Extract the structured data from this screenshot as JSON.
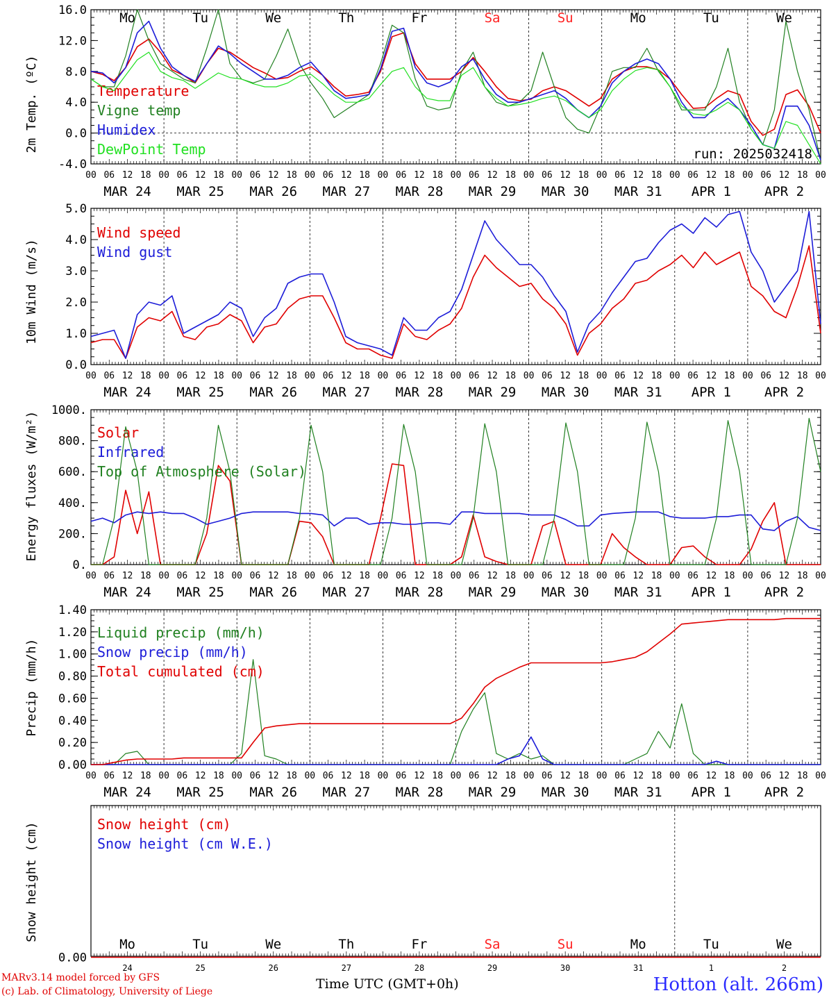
{
  "days": {
    "abbr": [
      "Mo",
      "Tu",
      "We",
      "Th",
      "Fr",
      "Sa",
      "Su",
      "Mo",
      "Tu",
      "We"
    ],
    "weekend_color": "#ff2020",
    "weekend_index": [
      5,
      6
    ],
    "dates": [
      "MAR 24",
      "MAR 25",
      "MAR 26",
      "MAR 27",
      "MAR 28",
      "MAR 29",
      "MAR 30",
      "MAR 31",
      "APR  1",
      "APR  2"
    ],
    "day_numbers": [
      "24",
      "25",
      "26",
      "27",
      "28",
      "29",
      "30",
      "31",
      "1",
      "2"
    ],
    "hour_labels": [
      "00",
      "06",
      "12",
      "18"
    ]
  },
  "colors": {
    "red": "#e00000",
    "green": "#208020",
    "blue": "#1c1cd8",
    "lightgreen": "#20e020",
    "black": "#000000"
  },
  "footer": {
    "model": "MARv3.14 model forced by GFS",
    "lab": "(c) Lab. of Climatology, University of Liege",
    "station": "Hotton (alt. 266m)",
    "time_axis": "Time UTC (GMT+0h)"
  },
  "chart_data": [
    {
      "type": "line",
      "id": "temperature",
      "ylabel": "2m Temp. (ºC)",
      "ylim": [
        -4,
        16
      ],
      "yticks": [
        "-4.0",
        "0.0",
        "4.0",
        "8.0",
        "12.0",
        "16.0"
      ],
      "annotation": "run: 2025032418",
      "x_unit": "hours since MAR 24 00 UTC, 3-hourly",
      "series": [
        {
          "name": "Temperature",
          "color": "red",
          "values": [
            8,
            7.6,
            6.8,
            8.5,
            11.2,
            12.2,
            10.5,
            8.2,
            7.5,
            6.5,
            9,
            11,
            10.5,
            9.5,
            8.5,
            7.8,
            7,
            7.2,
            8,
            8.6,
            7.5,
            6,
            4.8,
            5,
            5.3,
            8,
            12.5,
            13,
            9,
            7,
            7,
            7,
            8,
            9.8,
            8,
            6,
            4.5,
            4.2,
            4.4,
            5.5,
            6,
            5.5,
            4.5,
            3.5,
            4.5,
            7,
            8,
            8.6,
            8.6,
            8.2,
            7,
            5,
            3.2,
            3.3,
            4.5,
            5.5,
            5,
            1.5,
            -0.3,
            0.5,
            5,
            5.6,
            3.5,
            0
          ]
        },
        {
          "name": "Vigne temp",
          "color": "green",
          "values": [
            7,
            6,
            6,
            10,
            16,
            12,
            9,
            8,
            7,
            6.5,
            11,
            16,
            9,
            7,
            6.5,
            7,
            10,
            13.5,
            9,
            6.5,
            4.5,
            2,
            3,
            4,
            5,
            9,
            14,
            13,
            7,
            3.5,
            3,
            3.3,
            8,
            10.5,
            6,
            4,
            3.5,
            4,
            5.5,
            10.5,
            6,
            2,
            0.5,
            0,
            3.5,
            8,
            8.5,
            8.5,
            11,
            8,
            6,
            3,
            3,
            3,
            6,
            11,
            4,
            0.5,
            -1.5,
            3,
            14.5,
            8,
            3,
            -3.5
          ]
        },
        {
          "name": "Humidex",
          "color": "blue",
          "values": [
            8,
            7.8,
            6.5,
            8.5,
            13,
            14.5,
            11,
            8.6,
            7.5,
            6.7,
            9,
            11.3,
            10.3,
            9,
            8,
            7,
            7,
            7.5,
            8.5,
            9.2,
            7.5,
            5.5,
            4.5,
            4.7,
            5,
            8.3,
            13.2,
            13.6,
            8.5,
            6.5,
            6,
            6.6,
            8.6,
            9.6,
            7,
            5,
            4,
            4,
            4.5,
            5,
            5.5,
            4.5,
            3,
            2,
            3.5,
            6.5,
            8,
            9,
            9.6,
            9,
            7,
            4,
            2,
            2,
            3.5,
            4.5,
            3,
            1,
            -1.5,
            -2,
            3.5,
            3.5,
            1,
            -3.5
          ]
        },
        {
          "name": "DewPoint Temp",
          "color": "lightgreen",
          "values": [
            7,
            6,
            5.5,
            7.5,
            9.5,
            10.5,
            8,
            7.2,
            6.8,
            5.8,
            6.8,
            7.8,
            7.2,
            7,
            6.4,
            6,
            6,
            6.5,
            7.4,
            7.6,
            6.4,
            5,
            4,
            4,
            4.5,
            6.3,
            8,
            8.5,
            6,
            4.5,
            4.2,
            4.2,
            7.5,
            8.5,
            6,
            4.5,
            3.5,
            3.7,
            4,
            4.5,
            4.8,
            4.2,
            3,
            2,
            3,
            5.5,
            7,
            8.1,
            8.5,
            8.2,
            6,
            3.5,
            2.5,
            2.3,
            3,
            4,
            3,
            0.5,
            -1.5,
            -2,
            1.5,
            1,
            -1.5,
            -4
          ]
        }
      ]
    },
    {
      "type": "line",
      "id": "wind",
      "ylabel": "10m Wind (m/s)",
      "ylim": [
        0,
        5
      ],
      "yticks": [
        "0.0",
        "1.0",
        "2.0",
        "3.0",
        "4.0",
        "5.0"
      ],
      "x_unit": "hours since MAR 24 00 UTC, 3-hourly",
      "series": [
        {
          "name": "Wind speed",
          "color": "red",
          "values": [
            0.7,
            0.8,
            0.8,
            0.2,
            1.2,
            1.5,
            1.4,
            1.7,
            0.9,
            0.8,
            1.2,
            1.3,
            1.6,
            1.4,
            0.7,
            1.2,
            1.3,
            1.8,
            2.1,
            2.2,
            2.2,
            1.5,
            0.7,
            0.5,
            0.5,
            0.3,
            0.2,
            1.3,
            0.9,
            0.8,
            1.1,
            1.3,
            1.8,
            2.8,
            3.5,
            3.1,
            2.8,
            2.5,
            2.6,
            2.1,
            1.8,
            1.3,
            0.3,
            1,
            1.3,
            1.8,
            2.1,
            2.6,
            2.7,
            3,
            3.2,
            3.5,
            3.1,
            3.6,
            3.2,
            3.4,
            3.6,
            2.5,
            2.2,
            1.7,
            1.5,
            2.5,
            3.8,
            1
          ]
        },
        {
          "name": "Wind gust",
          "color": "blue",
          "values": [
            0.9,
            1,
            1.1,
            0.2,
            1.6,
            2,
            1.9,
            2.2,
            1,
            1.2,
            1.4,
            1.6,
            2,
            1.8,
            0.9,
            1.5,
            1.8,
            2.6,
            2.8,
            2.9,
            2.9,
            2,
            0.9,
            0.7,
            0.6,
            0.5,
            0.3,
            1.5,
            1.1,
            1.1,
            1.5,
            1.7,
            2.4,
            3.5,
            4.6,
            4,
            3.6,
            3.2,
            3.2,
            2.8,
            2.2,
            1.7,
            0.4,
            1.3,
            1.7,
            2.3,
            2.8,
            3.3,
            3.4,
            3.9,
            4.3,
            4.5,
            4.2,
            4.7,
            4.4,
            4.8,
            4.9,
            3.6,
            3,
            2,
            2.5,
            3,
            4.9,
            1.3
          ]
        }
      ]
    },
    {
      "type": "line",
      "id": "energy",
      "ylabel": "Energy fluxes (W/m²)",
      "ylim": [
        0,
        1000
      ],
      "yticks": [
        "0.",
        "200.",
        "400.",
        "600.",
        "800.",
        "1000."
      ],
      "x_unit": "hours since MAR 24 00 UTC, 3-hourly",
      "series": [
        {
          "name": "Solar",
          "color": "red",
          "values": [
            0,
            0,
            50,
            480,
            200,
            470,
            0,
            0,
            0,
            0,
            200,
            640,
            540,
            0,
            0,
            0,
            0,
            0,
            280,
            270,
            180,
            0,
            0,
            0,
            0,
            300,
            650,
            640,
            0,
            0,
            0,
            0,
            50,
            320,
            50,
            20,
            0,
            0,
            0,
            250,
            280,
            0,
            0,
            0,
            0,
            200,
            110,
            50,
            0,
            0,
            0,
            110,
            120,
            50,
            0,
            0,
            0,
            100,
            280,
            400,
            0,
            0,
            0,
            0
          ]
        },
        {
          "name": "Infrared",
          "color": "blue",
          "values": [
            280,
            300,
            270,
            320,
            340,
            330,
            340,
            330,
            330,
            300,
            260,
            280,
            300,
            330,
            340,
            340,
            340,
            340,
            330,
            330,
            320,
            250,
            300,
            300,
            260,
            270,
            270,
            260,
            260,
            270,
            270,
            260,
            340,
            340,
            330,
            330,
            330,
            330,
            320,
            320,
            320,
            290,
            250,
            250,
            320,
            330,
            335,
            340,
            340,
            340,
            310,
            300,
            300,
            300,
            310,
            310,
            320,
            320,
            230,
            220,
            280,
            310,
            240,
            220
          ]
        },
        {
          "name": "Top of Atmosphere (Solar)",
          "color": "green",
          "values": [
            0,
            0,
            300,
            890,
            600,
            0,
            0,
            0,
            0,
            0,
            300,
            900,
            600,
            0,
            0,
            0,
            0,
            0,
            300,
            900,
            600,
            0,
            0,
            0,
            0,
            0,
            300,
            905,
            600,
            0,
            0,
            0,
            0,
            300,
            910,
            600,
            0,
            0,
            0,
            0,
            300,
            915,
            600,
            0,
            0,
            0,
            0,
            300,
            920,
            600,
            0,
            0,
            0,
            0,
            300,
            930,
            600,
            0,
            0,
            0,
            0,
            300,
            945,
            600
          ]
        }
      ]
    },
    {
      "type": "line",
      "id": "precip",
      "ylabel": "Precip (mm/h)",
      "ylim": [
        0,
        1.4
      ],
      "yticks": [
        "0.00",
        "0.20",
        "0.40",
        "0.60",
        "0.80",
        "1.00",
        "1.20",
        "1.40"
      ],
      "x_unit": "hours since MAR 24 00 UTC, 3-hourly",
      "series": [
        {
          "name": "Liquid precip (mm/h)",
          "color": "green",
          "values": [
            0,
            0,
            0,
            0.1,
            0.12,
            0,
            0,
            0,
            0,
            0,
            0,
            0,
            0,
            0.1,
            0.95,
            0.08,
            0.05,
            0,
            0,
            0,
            0,
            0,
            0,
            0,
            0,
            0,
            0,
            0,
            0,
            0,
            0,
            0,
            0.3,
            0.5,
            0.65,
            0.1,
            0.05,
            0.1,
            0.05,
            0.08,
            0,
            0,
            0,
            0,
            0,
            0,
            0,
            0.05,
            0.1,
            0.3,
            0.15,
            0.55,
            0.1,
            0,
            0,
            0,
            0,
            0,
            0,
            0,
            0,
            0,
            0,
            0
          ]
        },
        {
          "name": "Snow precip (mm/h)",
          "color": "blue",
          "values": [
            0,
            0,
            0,
            0,
            0,
            0,
            0,
            0,
            0,
            0,
            0,
            0,
            0,
            0,
            0,
            0,
            0,
            0,
            0,
            0,
            0,
            0,
            0,
            0,
            0,
            0,
            0,
            0,
            0,
            0,
            0,
            0,
            0,
            0,
            0,
            0,
            0.05,
            0.08,
            0.25,
            0.05,
            0,
            0,
            0,
            0,
            0,
            0,
            0,
            0,
            0,
            0,
            0,
            0,
            0,
            0,
            0.03,
            0,
            0,
            0,
            0,
            0,
            0,
            0,
            0,
            0
          ]
        },
        {
          "name": "Total cumulated (cm)",
          "color": "red",
          "values": [
            0,
            0,
            0.02,
            0.04,
            0.05,
            0.05,
            0.05,
            0.05,
            0.06,
            0.06,
            0.06,
            0.06,
            0.06,
            0.06,
            0.2,
            0.33,
            0.35,
            0.36,
            0.37,
            0.37,
            0.37,
            0.37,
            0.37,
            0.37,
            0.37,
            0.37,
            0.37,
            0.37,
            0.37,
            0.37,
            0.37,
            0.37,
            0.42,
            0.55,
            0.7,
            0.78,
            0.83,
            0.88,
            0.92,
            0.92,
            0.92,
            0.92,
            0.92,
            0.92,
            0.92,
            0.93,
            0.95,
            0.97,
            1.02,
            1.1,
            1.18,
            1.27,
            1.28,
            1.29,
            1.3,
            1.31,
            1.31,
            1.31,
            1.31,
            1.31,
            1.32,
            1.32,
            1.32,
            1.32
          ]
        }
      ]
    },
    {
      "type": "line",
      "id": "snow",
      "ylabel": "Snow height (cm)",
      "yticks": [
        "0.00"
      ],
      "x_unit": "hours since MAR 24 00 UTC, 3-hourly",
      "series": [
        {
          "name": "Snow height (cm)",
          "color": "red",
          "values": [
            0,
            0
          ]
        },
        {
          "name": "Snow height (cm W.E.)",
          "color": "blue",
          "values": []
        }
      ]
    }
  ]
}
